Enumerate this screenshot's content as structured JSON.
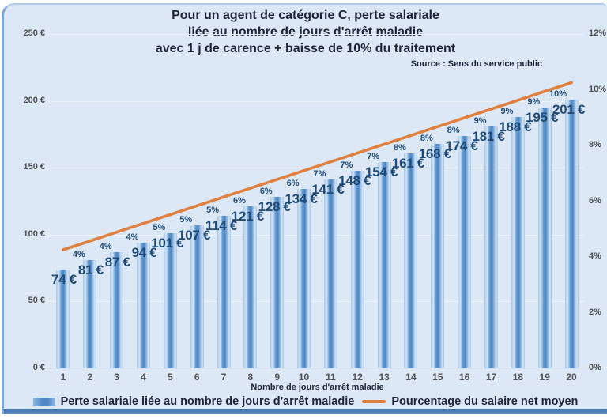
{
  "panel": {
    "title_lines": [
      "Pour un agent de catégorie C, perte salariale",
      "liée au nombre de jours d'arrêt maladie",
      "avec 1 j de carence + baisse de 10% du traitement"
    ],
    "source": "Source : Sens du service public"
  },
  "chart_data": {
    "type": "combo-bar-line",
    "title": "Pour un agent de catégorie C, perte salariale liée au nombre de jours d'arrêt maladie avec 1 j de carence + baisse de 10% du traitement",
    "xlabel": "Nombre de jours d'arrêt maladie",
    "categories": [
      1,
      2,
      3,
      4,
      5,
      6,
      7,
      8,
      9,
      10,
      11,
      12,
      13,
      14,
      15,
      16,
      17,
      18,
      19,
      20
    ],
    "bar_series": {
      "name": "Perte salariale liée au nombre de jours d'arrêt maladie",
      "unit": "€",
      "values": [
        74,
        81,
        87,
        94,
        101,
        107,
        114,
        121,
        128,
        134,
        141,
        148,
        154,
        161,
        168,
        174,
        181,
        188,
        195,
        201
      ],
      "labels": [
        "74 €",
        "81 €",
        "87 €",
        "94 €",
        "101 €",
        "107 €",
        "114 €",
        "121 €",
        "128 €",
        "134 €",
        "141 €",
        "148 €",
        "154 €",
        "161 €",
        "168 €",
        "174 €",
        "181 €",
        "188 €",
        "195 €",
        "201 €"
      ]
    },
    "line_series": {
      "name": "Pourcentage du salaire net moyen",
      "unit": "%",
      "labels": [
        "",
        "4%",
        "4%",
        "4%",
        "5%",
        "5%",
        "5%",
        "6%",
        "6%",
        "6%",
        "7%",
        "7%",
        "7%",
        "8%",
        "8%",
        "8%",
        "9%",
        "9%",
        "9%",
        "10%"
      ],
      "endpoints_pct": [
        4,
        10
      ]
    },
    "left_axis": {
      "min": 0,
      "max": 250,
      "ticks": [
        "0 €",
        "50 €",
        "100 €",
        "150 €",
        "200 €",
        "250 €"
      ]
    },
    "right_axis": {
      "min": 0,
      "max": 12,
      "ticks": [
        "0%",
        "2%",
        "4%",
        "6%",
        "8%",
        "10%",
        "12%"
      ]
    },
    "grid": true,
    "legend_position": "bottom",
    "colors": {
      "bar_dark": "#4f88c6",
      "bar_light": "#d2e3f4",
      "line": "#e0803f",
      "panel_background": "#dce8f5",
      "frame_blue": "#4f81bd",
      "data_label_text": "#1f4977",
      "title_text": "#1c2538"
    }
  },
  "legend": {
    "items": [
      {
        "label": "Perte salariale liée au nombre de jours d'arrêt maladie",
        "marker": "bar-swatch"
      },
      {
        "label": "Pourcentage du salaire net moyen",
        "marker": "line-swatch"
      }
    ]
  }
}
